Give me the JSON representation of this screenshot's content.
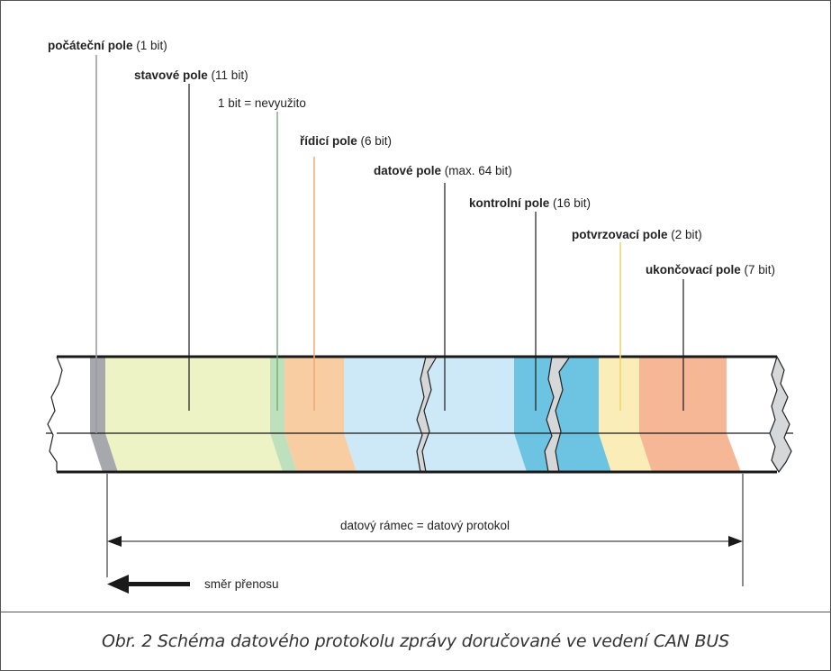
{
  "labels": {
    "start": {
      "name": "počáteční pole",
      "detail": " (1 bit)"
    },
    "status": {
      "name": "stavové pole",
      "detail": " (11 bit)"
    },
    "unused": {
      "text": "1 bit = nevyužito"
    },
    "control": {
      "name": "řídicí pole",
      "detail": " (6 bit)"
    },
    "data": {
      "name": "datové pole",
      "detail": " (max. 64 bit)"
    },
    "check": {
      "name": "kontrolní pole",
      "detail": " (16 bit)"
    },
    "ack": {
      "name": "potvrzovací pole",
      "detail": " (2 bit)"
    },
    "end": {
      "name": "ukončovací pole",
      "detail": " (7 bit)"
    }
  },
  "frame_label": "datový rámec = datový protokol",
  "direction_label": "směr přenosu",
  "caption": "Obr. 2 Schéma datového protokolu zprávy doručované ve vedení CAN BUS",
  "colors": {
    "start": "#a6a8ad",
    "status": "#eef3c6",
    "unused": "#bfe0bd",
    "control": "#f9cda2",
    "data": "#cde9f7",
    "check": "#6cc3e2",
    "ack": "#fbedb7",
    "end": "#f6b797",
    "outline": "#1a1a1a"
  }
}
